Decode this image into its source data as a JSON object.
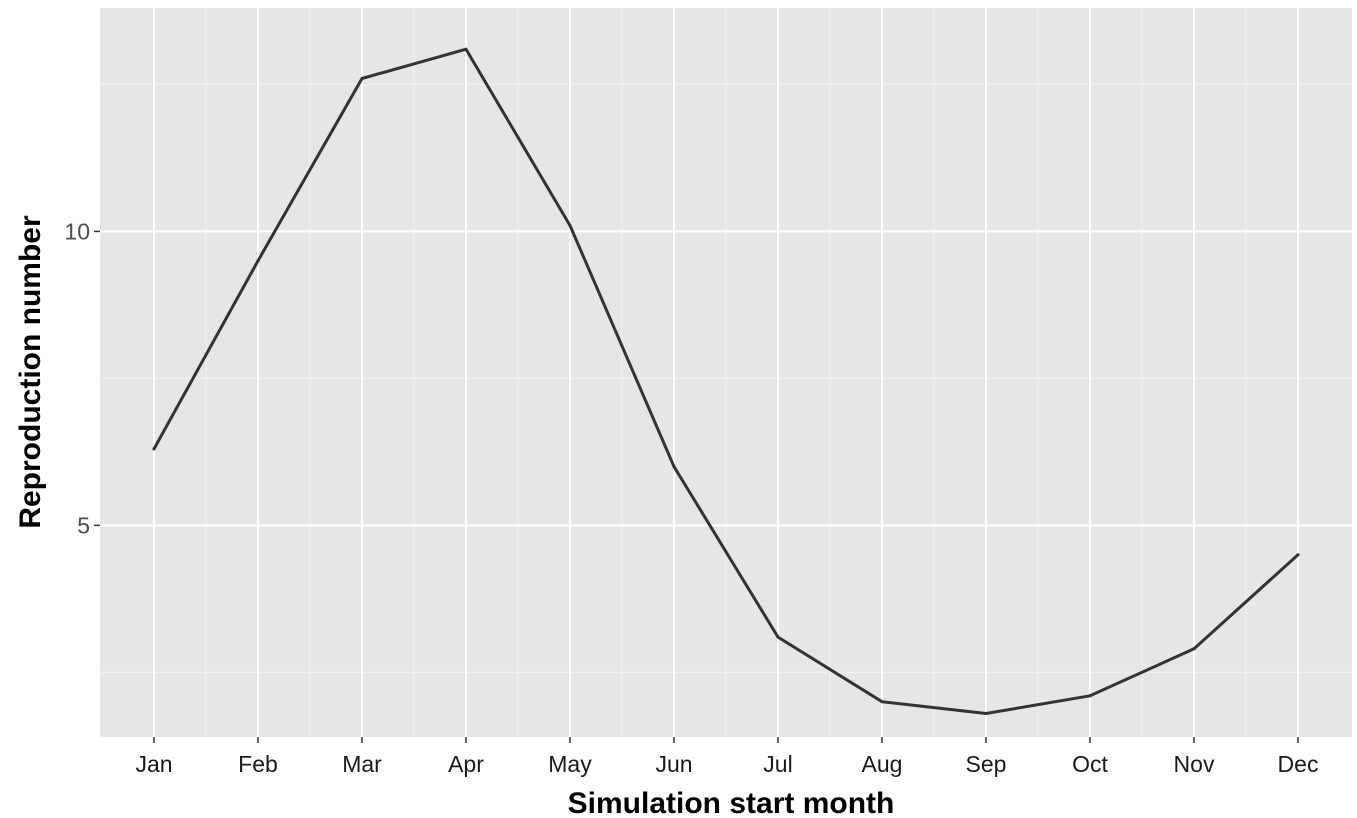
{
  "chart_data": {
    "type": "line",
    "categories": [
      "Jan",
      "Feb",
      "Mar",
      "Apr",
      "May",
      "Jun",
      "Jul",
      "Aug",
      "Sep",
      "Oct",
      "Nov",
      "Dec"
    ],
    "series": [
      {
        "values": [
          6.3,
          9.5,
          12.6,
          13.1,
          10.1,
          6.0,
          3.1,
          2.0,
          1.8,
          2.1,
          2.9,
          4.5
        ]
      }
    ],
    "xlabel": "Simulation start month",
    "ylabel": "Reproduction number",
    "ylim": [
      1.4,
      13.8
    ],
    "yticks": [
      5,
      10
    ],
    "yticks_minor": [
      2.5,
      7.5,
      12.5
    ],
    "grid": true,
    "legend": "none",
    "colors": {
      "panel": "#e6e6e6",
      "line": "#333333",
      "grid": "#ffffff"
    }
  }
}
